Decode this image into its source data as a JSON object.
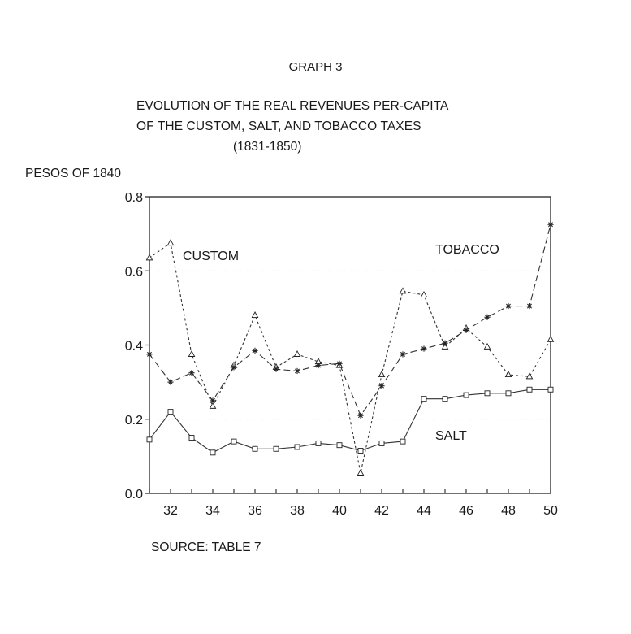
{
  "header": {
    "graph_number": "GRAPH 3",
    "title_line1": "EVOLUTION OF THE REAL REVENUES PER-CAPITA",
    "title_line2": "OF THE CUSTOM, SALT, AND TOBACCO TAXES",
    "title_line3": "(1831-1850)"
  },
  "footer": {
    "source": "SOURCE: TABLE 7"
  },
  "chart_data": {
    "type": "line",
    "title": "EVOLUTION OF THE REAL REVENUES PER-CAPITA OF THE CUSTOM, SALT, AND TOBACCO TAXES (1831-1850)",
    "ylabel": "PESOS OF 1840",
    "xlabel": "",
    "xlim": [
      31,
      50
    ],
    "ylim": [
      0.0,
      0.8
    ],
    "x": [
      31,
      32,
      33,
      34,
      35,
      36,
      37,
      38,
      39,
      40,
      41,
      42,
      43,
      44,
      45,
      46,
      47,
      48,
      49,
      50
    ],
    "x_ticks": [
      32,
      34,
      36,
      38,
      40,
      42,
      44,
      46,
      48,
      50
    ],
    "x_tick_labels": [
      "32",
      "34",
      "36",
      "38",
      "40",
      "42",
      "44",
      "46",
      "48",
      "50"
    ],
    "y_ticks": [
      0.0,
      0.2,
      0.4,
      0.6,
      0.8
    ],
    "y_tick_labels": [
      "0.0",
      "0.2",
      "0.4",
      "0.6",
      "0.8"
    ],
    "grid": true,
    "series": [
      {
        "name": "CUSTOM",
        "marker": "triangle",
        "line_style": "short-dash",
        "values": [
          0.635,
          0.675,
          0.375,
          0.235,
          0.345,
          0.48,
          0.34,
          0.375,
          0.355,
          0.345,
          0.055,
          0.32,
          0.545,
          0.535,
          0.395,
          0.445,
          0.395,
          0.32,
          0.315,
          0.415
        ]
      },
      {
        "name": "TOBACCO",
        "marker": "star",
        "line_style": "long-dash",
        "values": [
          0.375,
          0.3,
          0.325,
          0.25,
          0.34,
          0.385,
          0.335,
          0.33,
          0.345,
          0.35,
          0.21,
          0.29,
          0.375,
          0.39,
          0.405,
          0.44,
          0.475,
          0.505,
          0.505,
          0.725
        ]
      },
      {
        "name": "SALT",
        "marker": "square",
        "line_style": "solid",
        "values": [
          0.145,
          0.22,
          0.15,
          0.11,
          0.14,
          0.12,
          0.12,
          0.125,
          0.135,
          0.13,
          0.115,
          0.135,
          0.14,
          0.255,
          0.255,
          0.265,
          0.27,
          0.27,
          0.28,
          0.28
        ]
      }
    ]
  }
}
